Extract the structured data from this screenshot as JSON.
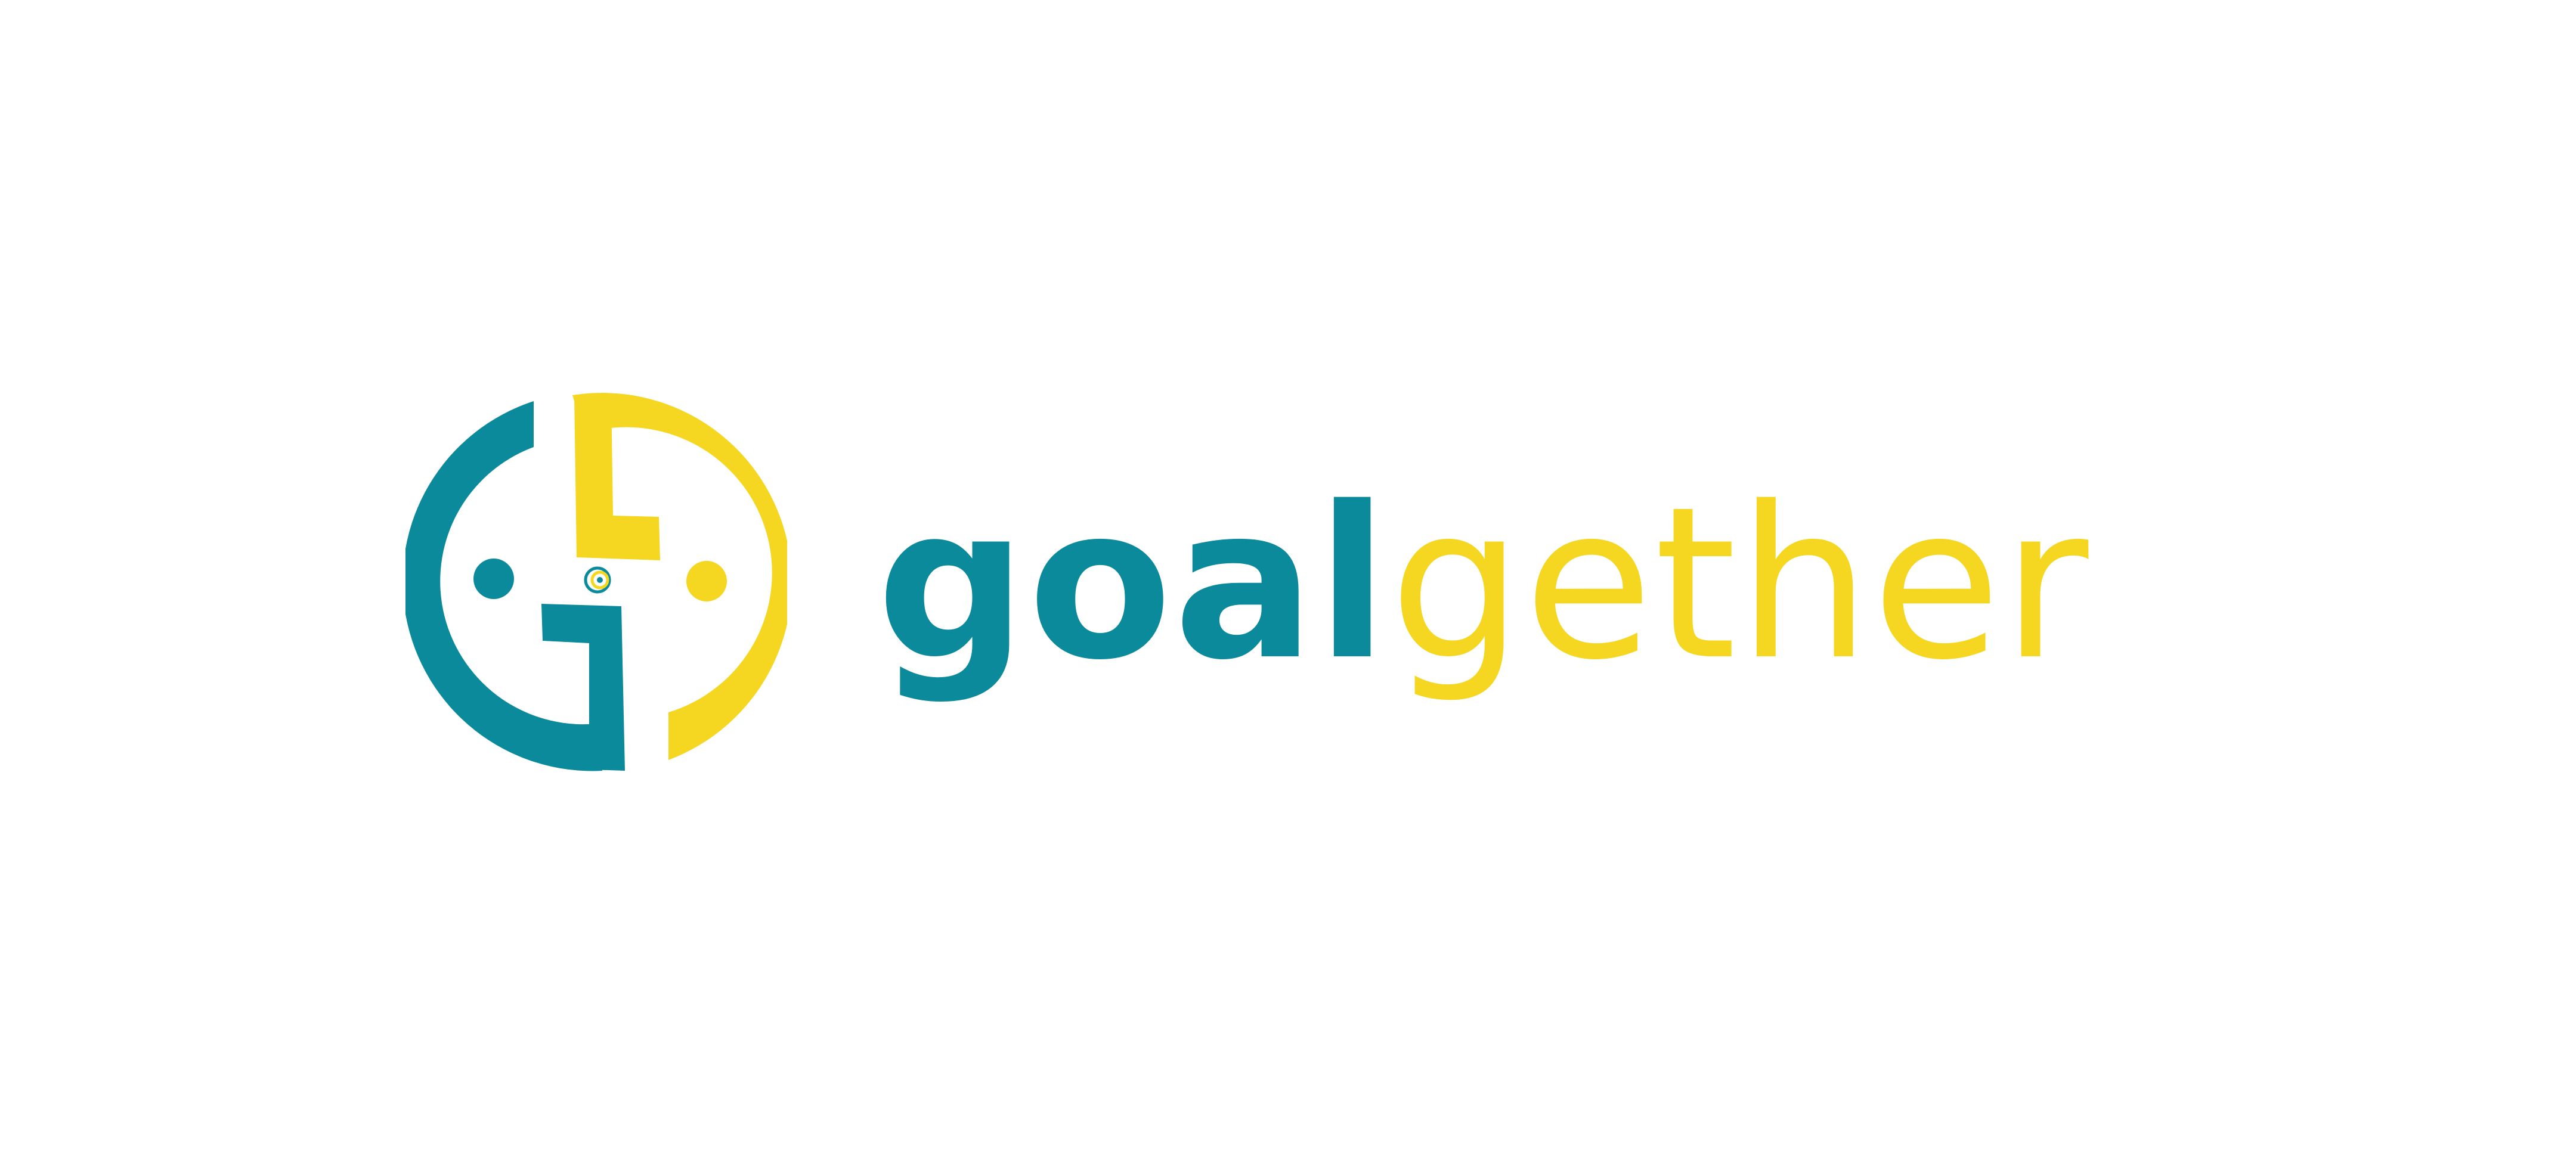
{
  "brand": {
    "name_part_1": "goal",
    "name_part_2": "gether",
    "colors": {
      "teal": "#0b8a9c",
      "yellow": "#f5d620",
      "background": "#ffffff"
    }
  },
  "logo": {
    "icon": "goalgether-emblem-icon"
  }
}
